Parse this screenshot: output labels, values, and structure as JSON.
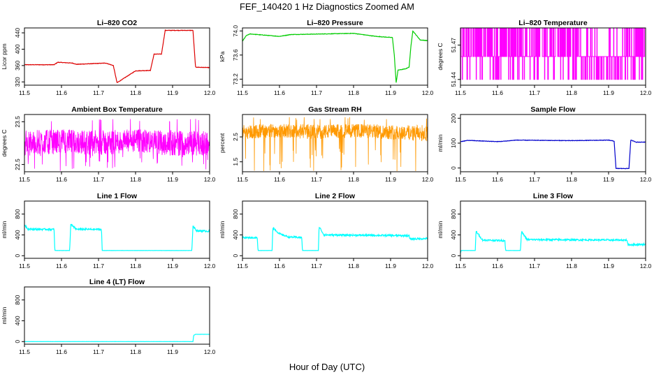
{
  "figure": {
    "title": "FEF_140420  1 Hz Diagnostics Zoomed AM",
    "xlabel": "Hour of Day (UTC)"
  },
  "chart_data": [
    {
      "type": "line",
      "title": "Li–820 CO2",
      "ylabel": "Licor ppm",
      "color": "#dd0000",
      "xlim": [
        11.5,
        12.0
      ],
      "ylim": [
        312,
        452
      ],
      "xticks": [
        "11.5",
        "11.6",
        "11.7",
        "11.8",
        "11.9",
        "12.0"
      ],
      "yticks": [
        320,
        360,
        400,
        440
      ],
      "x": [
        11.5,
        11.58,
        11.59,
        11.63,
        11.64,
        11.72,
        11.74,
        11.75,
        11.8,
        11.84,
        11.85,
        11.87,
        11.88,
        11.955,
        11.962,
        12.0
      ],
      "y": [
        362,
        362,
        368,
        366,
        363,
        366,
        360,
        318,
        347,
        348,
        388,
        388,
        446,
        446,
        356,
        355
      ]
    },
    {
      "type": "line",
      "title": "Li–820 Pressure",
      "ylabel": "kPa",
      "color": "#00cc00",
      "xlim": [
        11.5,
        12.0
      ],
      "ylim": [
        73.1,
        74.05
      ],
      "xticks": [
        "11.5",
        "11.6",
        "11.7",
        "11.8",
        "11.9",
        "12.0"
      ],
      "yticks": [
        "73.2",
        "73.6",
        "74.0"
      ],
      "x": [
        11.5,
        11.51,
        11.52,
        11.6,
        11.63,
        11.8,
        11.86,
        11.905,
        11.91,
        11.915,
        11.92,
        11.94,
        11.95,
        11.955,
        11.96,
        11.98,
        12.0
      ],
      "y": [
        73.83,
        73.92,
        73.95,
        73.91,
        73.94,
        73.96,
        73.91,
        73.89,
        73.6,
        73.14,
        73.35,
        73.37,
        73.4,
        73.75,
        74.0,
        73.85,
        73.84
      ]
    },
    {
      "type": "line",
      "title": "Li–820 Temperature",
      "ylabel": "degrees C",
      "color": "#ff00ff",
      "xlim": [
        11.5,
        12.0
      ],
      "ylim": [
        51.435,
        51.485
      ],
      "xticks": [
        "11.5",
        "11.6",
        "11.7",
        "11.8",
        "11.9",
        "12.0"
      ],
      "yticks": [
        "51.44",
        "51.47"
      ],
      "levels": [
        51.44,
        51.46,
        51.47
      ],
      "x": [
        11.5,
        12.0
      ],
      "y": [
        51.44,
        51.46
      ]
    },
    {
      "type": "line",
      "title": "Ambient Box Temperature",
      "ylabel": "degrees C",
      "color": "#ff00ff",
      "xlim": [
        11.5,
        12.0
      ],
      "ylim": [
        22.33,
        23.67
      ],
      "xticks": [
        "11.5",
        "11.6",
        "11.7",
        "11.8",
        "11.9",
        "12.0"
      ],
      "yticks": [
        "22.5",
        "23.5"
      ],
      "x": [
        11.5,
        11.6,
        11.7,
        11.8,
        11.9,
        12.0
      ],
      "y": [
        23.0,
        23.05,
        23.0,
        23.05,
        23.0,
        23.0
      ],
      "min": 22.35,
      "max": 23.6
    },
    {
      "type": "line",
      "title": "Gas Stream RH",
      "ylabel": "percent",
      "color": "#ff9900",
      "xlim": [
        11.5,
        12.0
      ],
      "ylim": [
        1.1,
        3.4
      ],
      "xticks": [
        "11.5",
        "11.6",
        "11.7",
        "11.8",
        "11.9",
        "12.0"
      ],
      "yticks": [
        "1.5",
        "2.5"
      ],
      "x": [
        11.5,
        11.6,
        11.7,
        11.8,
        11.9,
        12.0
      ],
      "y": [
        2.7,
        2.75,
        2.7,
        2.75,
        2.7,
        2.65
      ],
      "min": 1.1,
      "max": 3.3
    },
    {
      "type": "line",
      "title": "Sample Flow",
      "ylabel": "ml/min",
      "color": "#0000cc",
      "xlim": [
        11.5,
        12.0
      ],
      "ylim": [
        -15,
        215
      ],
      "xticks": [
        "11.5",
        "11.6",
        "11.7",
        "11.8",
        "11.9",
        "12.0"
      ],
      "yticks": [
        0,
        100,
        200
      ],
      "x": [
        11.5,
        11.52,
        11.6,
        11.62,
        11.65,
        11.8,
        11.9,
        11.915,
        11.92,
        11.955,
        11.96,
        11.975,
        12.0
      ],
      "y": [
        106,
        111,
        106,
        108,
        112,
        110,
        112,
        108,
        -2,
        -2,
        112,
        104,
        104
      ]
    },
    {
      "type": "line",
      "title": "Line 1 Flow",
      "ylabel": "ml/min",
      "color": "#00ffff",
      "xlim": [
        11.5,
        12.0
      ],
      "ylim": [
        -50,
        1050
      ],
      "xticks": [
        "11.5",
        "11.6",
        "11.7",
        "11.8",
        "11.9",
        "12.0"
      ],
      "yticks": [
        0,
        400,
        800
      ],
      "x": [
        11.5,
        11.51,
        11.58,
        11.582,
        11.622,
        11.625,
        11.64,
        11.708,
        11.71,
        11.952,
        11.955,
        11.965,
        12.0
      ],
      "y": [
        600,
        510,
        505,
        100,
        100,
        600,
        510,
        505,
        100,
        100,
        570,
        480,
        470
      ]
    },
    {
      "type": "line",
      "title": "Line 2 Flow",
      "ylabel": "ml/min",
      "color": "#00ffff",
      "xlim": [
        11.5,
        12.0
      ],
      "ylim": [
        -50,
        1050
      ],
      "xticks": [
        "11.5",
        "11.6",
        "11.7",
        "11.8",
        "11.9",
        "12.0"
      ],
      "yticks": [
        0,
        400,
        800
      ],
      "x": [
        11.5,
        11.54,
        11.542,
        11.58,
        11.582,
        11.6,
        11.625,
        11.66,
        11.662,
        11.705,
        11.707,
        11.72,
        11.95,
        11.952,
        12.0
      ],
      "y": [
        350,
        345,
        100,
        100,
        540,
        420,
        360,
        350,
        100,
        100,
        560,
        400,
        385,
        320,
        330
      ]
    },
    {
      "type": "line",
      "title": "Line 3 Flow",
      "ylabel": "ml/min",
      "color": "#00ffff",
      "xlim": [
        11.5,
        12.0
      ],
      "ylim": [
        -50,
        1050
      ],
      "xticks": [
        "11.5",
        "11.6",
        "11.7",
        "11.8",
        "11.9",
        "12.0"
      ],
      "yticks": [
        0,
        400,
        800
      ],
      "x": [
        11.5,
        11.502,
        11.54,
        11.542,
        11.56,
        11.62,
        11.622,
        11.662,
        11.665,
        11.68,
        11.95,
        11.952,
        12.0
      ],
      "y": [
        50,
        100,
        100,
        470,
        300,
        290,
        100,
        100,
        460,
        310,
        300,
        210,
        220
      ]
    },
    {
      "type": "line",
      "title": "Line 4 (LT) Flow",
      "ylabel": "ml/min",
      "color": "#00ffff",
      "xlim": [
        11.5,
        12.0
      ],
      "ylim": [
        -50,
        1050
      ],
      "xticks": [
        "11.5",
        "11.6",
        "11.7",
        "11.8",
        "11.9",
        "12.0"
      ],
      "yticks": [
        0,
        400,
        800
      ],
      "x": [
        11.5,
        11.955,
        11.957,
        11.962,
        12.0
      ],
      "y": [
        0,
        0,
        120,
        140,
        140
      ]
    }
  ]
}
